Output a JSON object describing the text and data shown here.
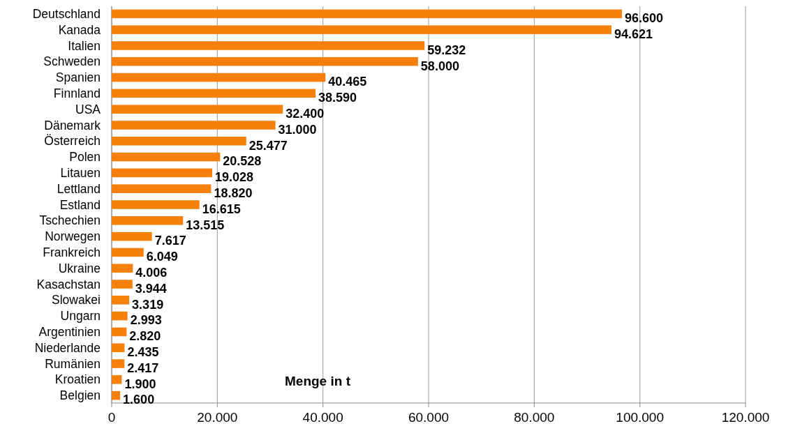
{
  "chart_data": {
    "type": "bar",
    "orientation": "horizontal",
    "xlabel": "Menge in t",
    "categories": [
      "Deutschland",
      "Kanada",
      "Italien",
      "Schweden",
      "Spanien",
      "Finnland",
      "USA",
      "Dänemark",
      "Österreich",
      "Polen",
      "Litauen",
      "Lettland",
      "Estland",
      "Tschechien",
      "Norwegen",
      "Frankreich",
      "Ukraine",
      "Kasachstan",
      "Slowakei",
      "Ungarn",
      "Argentinien",
      "Niederlande",
      "Rumänien",
      "Kroatien",
      "Belgien"
    ],
    "values": [
      96600,
      94621,
      59232,
      58000,
      40465,
      38590,
      32400,
      31000,
      25477,
      20528,
      19028,
      18820,
      16615,
      13515,
      7617,
      6049,
      4006,
      3944,
      3319,
      2993,
      2820,
      2435,
      2417,
      1900,
      1600
    ],
    "value_labels": [
      "96.600",
      "94.621",
      "59.232",
      "58.000",
      "40.465",
      "38.590",
      "32.400",
      "31.000",
      "25.477",
      "20.528",
      "19.028",
      "18.820",
      "16.615",
      "13.515",
      "7.617",
      "6.049",
      "4.006",
      "3.944",
      "3.319",
      "2.993",
      "2.820",
      "2.435",
      "2.417",
      "1.900",
      "1.600"
    ],
    "color": "#f77f0b",
    "xlim": [
      0,
      120000
    ],
    "xticks": [
      0,
      {
        "value": 20000,
        "label": "20.000"
      },
      {
        "value": 40000,
        "label": "40.000"
      },
      {
        "value": 60000,
        "label": "60.000"
      },
      {
        "value": 80000,
        "label": "80.000"
      },
      {
        "value": 100000,
        "label": "100.000"
      },
      {
        "value": 120000,
        "label": "120.000"
      }
    ],
    "grid": "x"
  }
}
